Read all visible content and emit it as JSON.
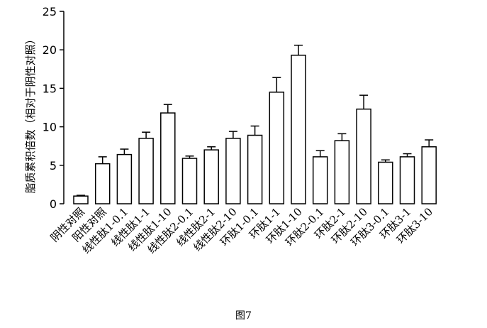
{
  "caption": "图7",
  "chart_data": {
    "type": "bar",
    "ylabel": "脂质累积倍数（相对于阴性对照）",
    "xlabel": "",
    "ylim": [
      0,
      25
    ],
    "yticks": [
      0,
      5,
      10,
      15,
      20,
      25
    ],
    "grid": false,
    "error_bars": true,
    "categories": [
      "阴性对照",
      "阳性对照",
      "线性肽1-0.1",
      "线性肽1-1",
      "线性肽1-10",
      "线性肽2-0.1",
      "线性肽2-1",
      "线性肽2-10",
      "环肽1-0.1",
      "环肽1-1",
      "环肽1-10",
      "环肽2-0.1",
      "环肽2-1",
      "环肽2-10",
      "环肽3-0.1",
      "环肽3-1",
      "环肽3-10"
    ],
    "values": [
      1.0,
      5.2,
      6.4,
      8.5,
      11.8,
      5.9,
      7.0,
      8.5,
      8.9,
      14.5,
      19.3,
      6.1,
      8.2,
      12.3,
      5.4,
      6.1,
      7.4
    ],
    "errors": [
      0.1,
      0.9,
      0.7,
      0.8,
      1.1,
      0.3,
      0.4,
      0.9,
      1.2,
      1.9,
      1.3,
      0.8,
      0.9,
      1.8,
      0.3,
      0.4,
      0.9
    ]
  }
}
